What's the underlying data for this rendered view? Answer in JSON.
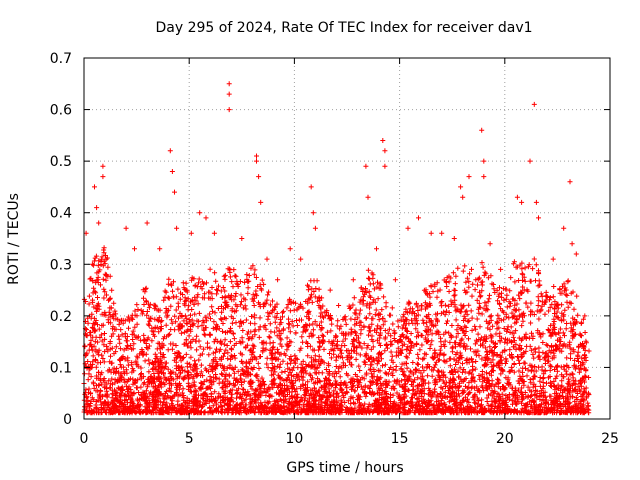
{
  "chart_data": {
    "type": "scatter",
    "title": "Day 295 of 2024, Rate Of TEC Index for receiver dav1",
    "xlabel": "GPS time / hours",
    "ylabel": "ROTI / TECUs",
    "xlim": [
      0,
      25
    ],
    "ylim": [
      0,
      0.7
    ],
    "x_ticks": [
      "0",
      "5",
      "10",
      "15",
      "20",
      "25"
    ],
    "y_ticks": [
      "0",
      "0.1",
      "0.2",
      "0.3",
      "0.4",
      "0.5",
      "0.6",
      "0.7"
    ],
    "grid": true,
    "marker": "+",
    "series": [
      {
        "name": "dav1 ROTI",
        "color": "#ff0000",
        "description": "Dense ROTI samples every few seconds from 0 to 24 h, mostly 0.01–0.2 TECU/s, with isolated arc peaks.",
        "points": [
          [
            0.1,
            0.36
          ],
          [
            0.4,
            0.3
          ],
          [
            0.5,
            0.45
          ],
          [
            0.6,
            0.41
          ],
          [
            0.7,
            0.38
          ],
          [
            0.9,
            0.49
          ],
          [
            0.9,
            0.47
          ],
          [
            2.0,
            0.37
          ],
          [
            2.4,
            0.33
          ],
          [
            3.0,
            0.38
          ],
          [
            3.6,
            0.33
          ],
          [
            4.1,
            0.52
          ],
          [
            4.2,
            0.48
          ],
          [
            4.3,
            0.44
          ],
          [
            4.4,
            0.37
          ],
          [
            5.1,
            0.36
          ],
          [
            5.5,
            0.4
          ],
          [
            5.8,
            0.39
          ],
          [
            6.2,
            0.36
          ],
          [
            6.9,
            0.65
          ],
          [
            6.9,
            0.63
          ],
          [
            6.9,
            0.6
          ],
          [
            7.5,
            0.35
          ],
          [
            8.2,
            0.51
          ],
          [
            8.2,
            0.5
          ],
          [
            8.3,
            0.47
          ],
          [
            8.4,
            0.42
          ],
          [
            8.7,
            0.31
          ],
          [
            9.2,
            0.27
          ],
          [
            9.8,
            0.33
          ],
          [
            10.3,
            0.31
          ],
          [
            10.8,
            0.45
          ],
          [
            10.9,
            0.4
          ],
          [
            11.0,
            0.37
          ],
          [
            11.7,
            0.25
          ],
          [
            12.1,
            0.22
          ],
          [
            12.8,
            0.27
          ],
          [
            13.4,
            0.49
          ],
          [
            13.5,
            0.43
          ],
          [
            13.9,
            0.33
          ],
          [
            14.2,
            0.54
          ],
          [
            14.3,
            0.52
          ],
          [
            14.3,
            0.49
          ],
          [
            14.8,
            0.27
          ],
          [
            15.4,
            0.37
          ],
          [
            15.9,
            0.39
          ],
          [
            16.5,
            0.36
          ],
          [
            17.0,
            0.36
          ],
          [
            17.6,
            0.35
          ],
          [
            17.9,
            0.45
          ],
          [
            18.0,
            0.43
          ],
          [
            18.3,
            0.47
          ],
          [
            18.9,
            0.56
          ],
          [
            19.0,
            0.5
          ],
          [
            19.0,
            0.47
          ],
          [
            19.3,
            0.34
          ],
          [
            19.8,
            0.29
          ],
          [
            20.6,
            0.43
          ],
          [
            20.8,
            0.42
          ],
          [
            21.2,
            0.5
          ],
          [
            21.4,
            0.61
          ],
          [
            21.5,
            0.42
          ],
          [
            21.6,
            0.39
          ],
          [
            22.3,
            0.31
          ],
          [
            22.8,
            0.37
          ],
          [
            23.1,
            0.46
          ],
          [
            23.2,
            0.34
          ],
          [
            23.4,
            0.32
          ],
          [
            23.8,
            0.2
          ]
        ],
        "envelope": [
          [
            0,
            0.22
          ],
          [
            0.5,
            0.3
          ],
          [
            1,
            0.33
          ],
          [
            1.5,
            0.2
          ],
          [
            2,
            0.18
          ],
          [
            2.5,
            0.22
          ],
          [
            3,
            0.25
          ],
          [
            3.5,
            0.2
          ],
          [
            4,
            0.26
          ],
          [
            4.5,
            0.25
          ],
          [
            5,
            0.26
          ],
          [
            5.5,
            0.27
          ],
          [
            6,
            0.28
          ],
          [
            6.5,
            0.26
          ],
          [
            7,
            0.3
          ],
          [
            7.5,
            0.25
          ],
          [
            8,
            0.3
          ],
          [
            8.5,
            0.26
          ],
          [
            9,
            0.22
          ],
          [
            9.5,
            0.2
          ],
          [
            10,
            0.24
          ],
          [
            10.5,
            0.25
          ],
          [
            11,
            0.27
          ],
          [
            11.5,
            0.2
          ],
          [
            12,
            0.18
          ],
          [
            12.5,
            0.2
          ],
          [
            13,
            0.24
          ],
          [
            13.5,
            0.28
          ],
          [
            14,
            0.26
          ],
          [
            14.5,
            0.22
          ],
          [
            15,
            0.18
          ],
          [
            15.5,
            0.22
          ],
          [
            16,
            0.24
          ],
          [
            16.5,
            0.25
          ],
          [
            17,
            0.26
          ],
          [
            17.5,
            0.27
          ],
          [
            18,
            0.3
          ],
          [
            18.5,
            0.28
          ],
          [
            19,
            0.3
          ],
          [
            19.5,
            0.25
          ],
          [
            20,
            0.24
          ],
          [
            20.5,
            0.3
          ],
          [
            21,
            0.3
          ],
          [
            21.5,
            0.3
          ],
          [
            22,
            0.24
          ],
          [
            22.5,
            0.25
          ],
          [
            23,
            0.26
          ],
          [
            23.5,
            0.22
          ],
          [
            24,
            0.15
          ]
        ]
      }
    ]
  }
}
